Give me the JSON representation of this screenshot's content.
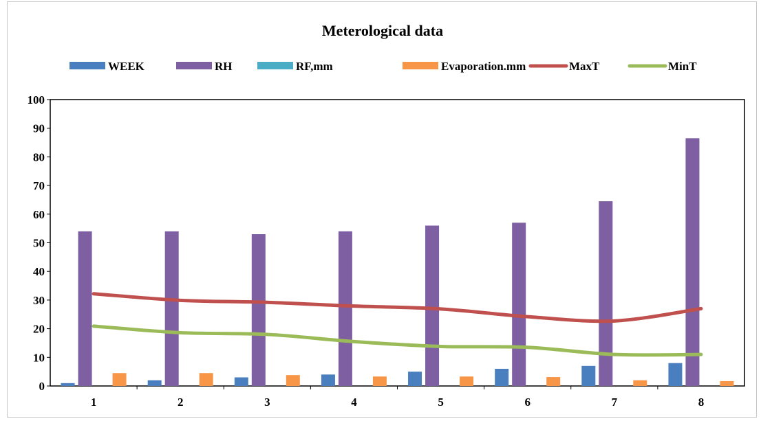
{
  "chart_data": {
    "type": "bar",
    "title": "Meterological data",
    "categories": [
      "1",
      "2",
      "3",
      "4",
      "5",
      "6",
      "7",
      "8"
    ],
    "ylim": [
      0,
      100
    ],
    "yticks": [
      "0",
      "10",
      "20",
      "30",
      "40",
      "50",
      "60",
      "70",
      "80",
      "90",
      "100"
    ],
    "grid": false,
    "legend_position": "top",
    "series": [
      {
        "name": "WEEK",
        "kind": "bar",
        "color": "#4a7fbf",
        "values": [
          1,
          2,
          3,
          4,
          5,
          6,
          7,
          8
        ]
      },
      {
        "name": "RH",
        "kind": "bar",
        "color": "#7e5fa2",
        "values": [
          54,
          54,
          53,
          54,
          56,
          57,
          64.5,
          86.5
        ]
      },
      {
        "name": "RF,mm",
        "kind": "bar",
        "color": "#4bacc6",
        "values": [
          0,
          0,
          0,
          0,
          0,
          0,
          0,
          0
        ]
      },
      {
        "name": "Evaporation.mm",
        "kind": "bar",
        "color": "#f79646",
        "values": [
          4.5,
          4.5,
          3.8,
          3.3,
          3.3,
          3.1,
          2,
          1.7
        ]
      },
      {
        "name": "MaxT",
        "kind": "line",
        "color": "#c0504d",
        "values": [
          32.2,
          29.9,
          29.2,
          27.9,
          26.9,
          24.2,
          22.7,
          27
        ]
      },
      {
        "name": "MinT",
        "kind": "line",
        "color": "#9bbb59",
        "values": [
          20.9,
          18.6,
          18,
          15.5,
          13.8,
          13.5,
          11,
          11
        ]
      }
    ]
  }
}
